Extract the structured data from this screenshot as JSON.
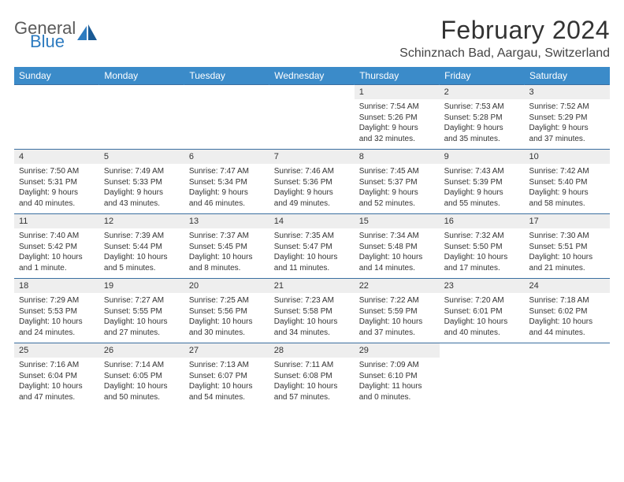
{
  "brand": {
    "line1": "General",
    "line2": "Blue"
  },
  "title": "February 2024",
  "location": "Schinznach Bad, Aargau, Switzerland",
  "colors": {
    "header_bg": "#3b8bc9",
    "header_text": "#ffffff",
    "daynum_bg": "#eeeeee",
    "week_divider": "#3b6fa0",
    "brand_blue": "#2d7bc0",
    "text": "#333333"
  },
  "weekdays": [
    "Sunday",
    "Monday",
    "Tuesday",
    "Wednesday",
    "Thursday",
    "Friday",
    "Saturday"
  ],
  "weeks": [
    [
      null,
      null,
      null,
      null,
      {
        "d": "1",
        "sr": "Sunrise: 7:54 AM",
        "ss": "Sunset: 5:26 PM",
        "dl1": "Daylight: 9 hours",
        "dl2": "and 32 minutes."
      },
      {
        "d": "2",
        "sr": "Sunrise: 7:53 AM",
        "ss": "Sunset: 5:28 PM",
        "dl1": "Daylight: 9 hours",
        "dl2": "and 35 minutes."
      },
      {
        "d": "3",
        "sr": "Sunrise: 7:52 AM",
        "ss": "Sunset: 5:29 PM",
        "dl1": "Daylight: 9 hours",
        "dl2": "and 37 minutes."
      }
    ],
    [
      {
        "d": "4",
        "sr": "Sunrise: 7:50 AM",
        "ss": "Sunset: 5:31 PM",
        "dl1": "Daylight: 9 hours",
        "dl2": "and 40 minutes."
      },
      {
        "d": "5",
        "sr": "Sunrise: 7:49 AM",
        "ss": "Sunset: 5:33 PM",
        "dl1": "Daylight: 9 hours",
        "dl2": "and 43 minutes."
      },
      {
        "d": "6",
        "sr": "Sunrise: 7:47 AM",
        "ss": "Sunset: 5:34 PM",
        "dl1": "Daylight: 9 hours",
        "dl2": "and 46 minutes."
      },
      {
        "d": "7",
        "sr": "Sunrise: 7:46 AM",
        "ss": "Sunset: 5:36 PM",
        "dl1": "Daylight: 9 hours",
        "dl2": "and 49 minutes."
      },
      {
        "d": "8",
        "sr": "Sunrise: 7:45 AM",
        "ss": "Sunset: 5:37 PM",
        "dl1": "Daylight: 9 hours",
        "dl2": "and 52 minutes."
      },
      {
        "d": "9",
        "sr": "Sunrise: 7:43 AM",
        "ss": "Sunset: 5:39 PM",
        "dl1": "Daylight: 9 hours",
        "dl2": "and 55 minutes."
      },
      {
        "d": "10",
        "sr": "Sunrise: 7:42 AM",
        "ss": "Sunset: 5:40 PM",
        "dl1": "Daylight: 9 hours",
        "dl2": "and 58 minutes."
      }
    ],
    [
      {
        "d": "11",
        "sr": "Sunrise: 7:40 AM",
        "ss": "Sunset: 5:42 PM",
        "dl1": "Daylight: 10 hours",
        "dl2": "and 1 minute."
      },
      {
        "d": "12",
        "sr": "Sunrise: 7:39 AM",
        "ss": "Sunset: 5:44 PM",
        "dl1": "Daylight: 10 hours",
        "dl2": "and 5 minutes."
      },
      {
        "d": "13",
        "sr": "Sunrise: 7:37 AM",
        "ss": "Sunset: 5:45 PM",
        "dl1": "Daylight: 10 hours",
        "dl2": "and 8 minutes."
      },
      {
        "d": "14",
        "sr": "Sunrise: 7:35 AM",
        "ss": "Sunset: 5:47 PM",
        "dl1": "Daylight: 10 hours",
        "dl2": "and 11 minutes."
      },
      {
        "d": "15",
        "sr": "Sunrise: 7:34 AM",
        "ss": "Sunset: 5:48 PM",
        "dl1": "Daylight: 10 hours",
        "dl2": "and 14 minutes."
      },
      {
        "d": "16",
        "sr": "Sunrise: 7:32 AM",
        "ss": "Sunset: 5:50 PM",
        "dl1": "Daylight: 10 hours",
        "dl2": "and 17 minutes."
      },
      {
        "d": "17",
        "sr": "Sunrise: 7:30 AM",
        "ss": "Sunset: 5:51 PM",
        "dl1": "Daylight: 10 hours",
        "dl2": "and 21 minutes."
      }
    ],
    [
      {
        "d": "18",
        "sr": "Sunrise: 7:29 AM",
        "ss": "Sunset: 5:53 PM",
        "dl1": "Daylight: 10 hours",
        "dl2": "and 24 minutes."
      },
      {
        "d": "19",
        "sr": "Sunrise: 7:27 AM",
        "ss": "Sunset: 5:55 PM",
        "dl1": "Daylight: 10 hours",
        "dl2": "and 27 minutes."
      },
      {
        "d": "20",
        "sr": "Sunrise: 7:25 AM",
        "ss": "Sunset: 5:56 PM",
        "dl1": "Daylight: 10 hours",
        "dl2": "and 30 minutes."
      },
      {
        "d": "21",
        "sr": "Sunrise: 7:23 AM",
        "ss": "Sunset: 5:58 PM",
        "dl1": "Daylight: 10 hours",
        "dl2": "and 34 minutes."
      },
      {
        "d": "22",
        "sr": "Sunrise: 7:22 AM",
        "ss": "Sunset: 5:59 PM",
        "dl1": "Daylight: 10 hours",
        "dl2": "and 37 minutes."
      },
      {
        "d": "23",
        "sr": "Sunrise: 7:20 AM",
        "ss": "Sunset: 6:01 PM",
        "dl1": "Daylight: 10 hours",
        "dl2": "and 40 minutes."
      },
      {
        "d": "24",
        "sr": "Sunrise: 7:18 AM",
        "ss": "Sunset: 6:02 PM",
        "dl1": "Daylight: 10 hours",
        "dl2": "and 44 minutes."
      }
    ],
    [
      {
        "d": "25",
        "sr": "Sunrise: 7:16 AM",
        "ss": "Sunset: 6:04 PM",
        "dl1": "Daylight: 10 hours",
        "dl2": "and 47 minutes."
      },
      {
        "d": "26",
        "sr": "Sunrise: 7:14 AM",
        "ss": "Sunset: 6:05 PM",
        "dl1": "Daylight: 10 hours",
        "dl2": "and 50 minutes."
      },
      {
        "d": "27",
        "sr": "Sunrise: 7:13 AM",
        "ss": "Sunset: 6:07 PM",
        "dl1": "Daylight: 10 hours",
        "dl2": "and 54 minutes."
      },
      {
        "d": "28",
        "sr": "Sunrise: 7:11 AM",
        "ss": "Sunset: 6:08 PM",
        "dl1": "Daylight: 10 hours",
        "dl2": "and 57 minutes."
      },
      {
        "d": "29",
        "sr": "Sunrise: 7:09 AM",
        "ss": "Sunset: 6:10 PM",
        "dl1": "Daylight: 11 hours",
        "dl2": "and 0 minutes."
      },
      null,
      null
    ]
  ]
}
